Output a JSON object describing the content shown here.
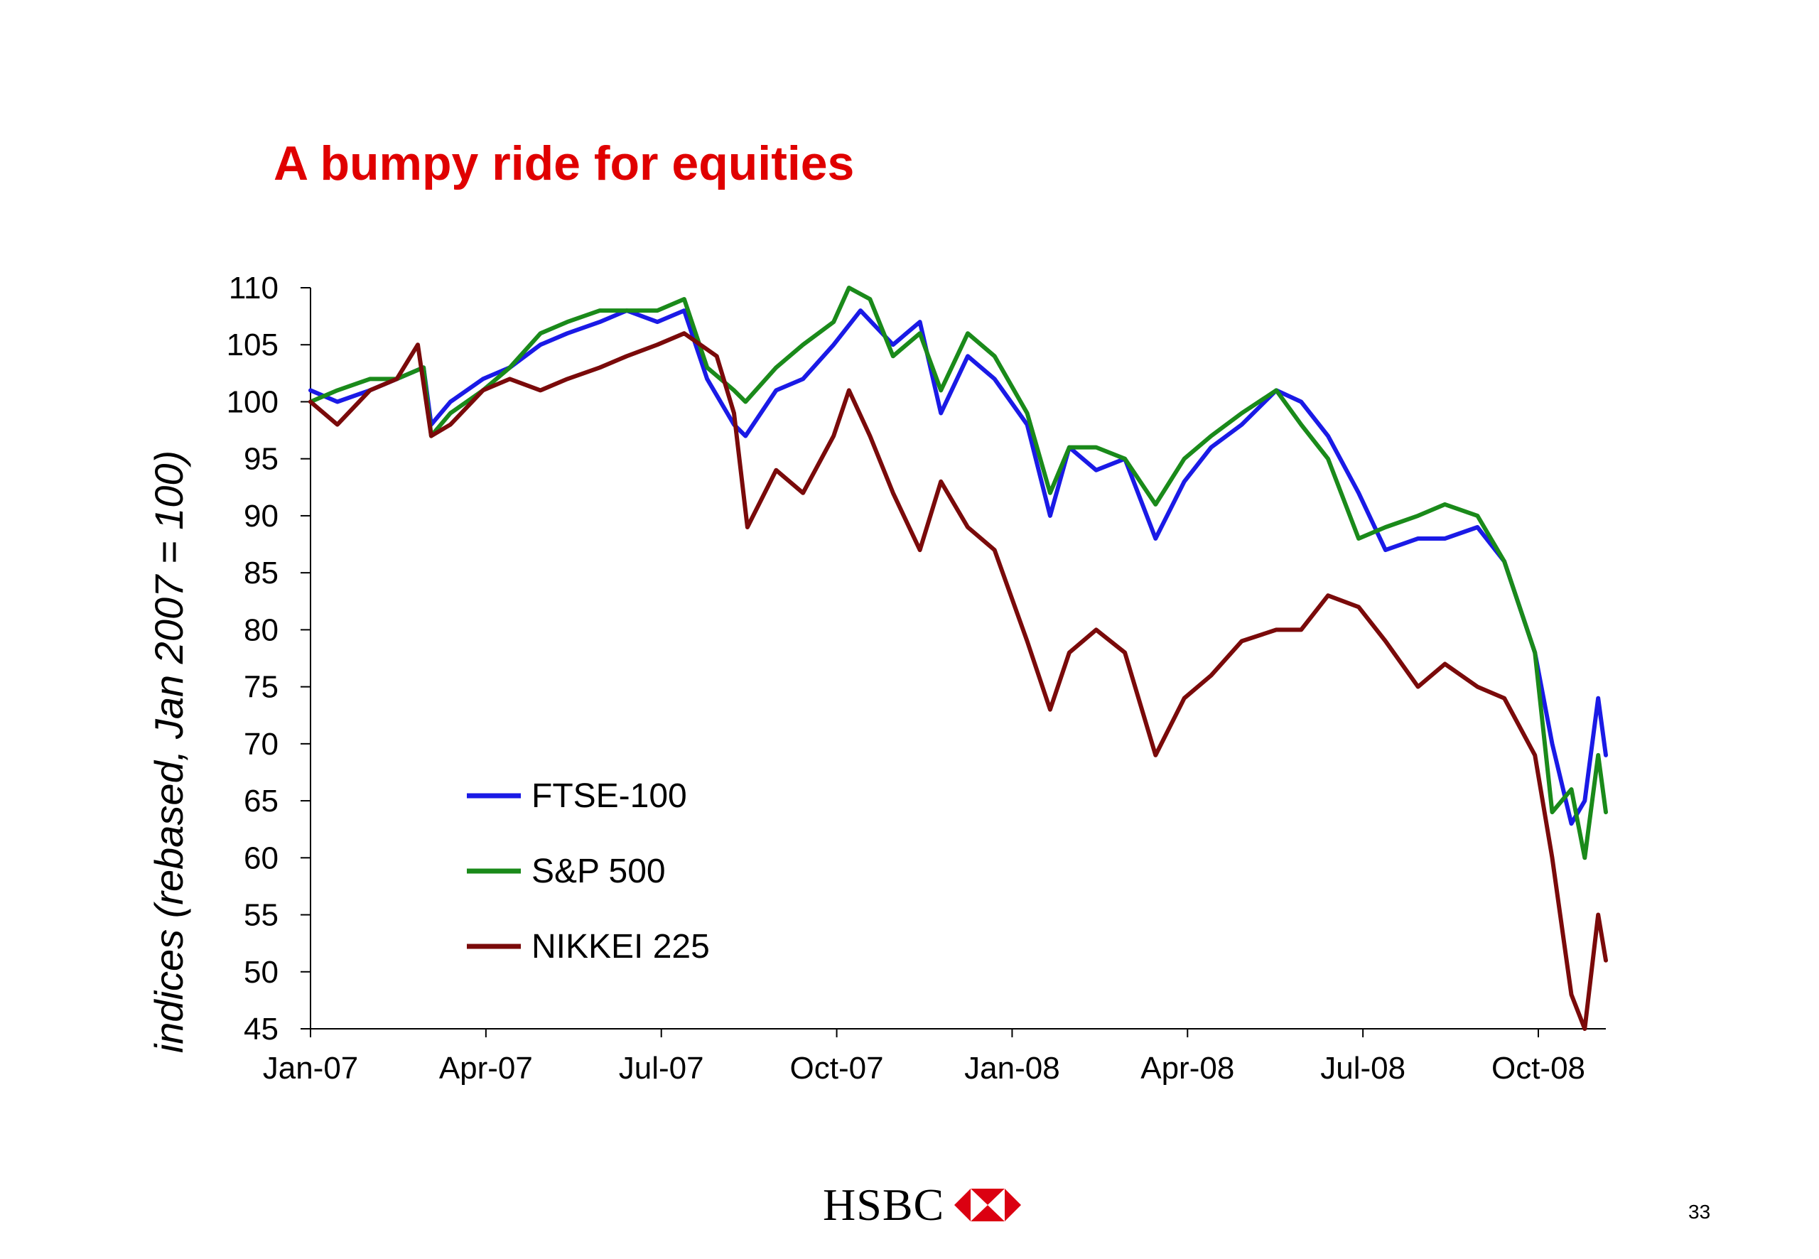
{
  "slide": {
    "title": "A bumpy ride for equities",
    "brand_name": "HSBC",
    "page_number": "33"
  },
  "colors": {
    "title": "#e00000",
    "ftse": "#1a1ae6",
    "sp500": "#1a8a1a",
    "nikkei": "#7a0a0a",
    "logo_red": "#db0011"
  },
  "chart_data": {
    "type": "line",
    "title": "A bumpy ride for equities",
    "xlabel": "",
    "ylabel": "indices (rebased, Jan 2007 = 100)",
    "ylim": [
      45,
      110
    ],
    "yticks": [
      110,
      105,
      100,
      95,
      90,
      85,
      80,
      75,
      70,
      65,
      60,
      55,
      50,
      45
    ],
    "xlim": [
      "2007-01-01",
      "2008-11-07"
    ],
    "xticks": [
      "Jan-07",
      "Apr-07",
      "Jul-07",
      "Oct-07",
      "Jan-08",
      "Apr-08",
      "Jul-08",
      "Oct-08"
    ],
    "grid": false,
    "legend": "lower-left",
    "series": [
      {
        "name": "FTSE-100",
        "color": "#1a1ae6",
        "x": [
          "2007-01-01",
          "2007-01-15",
          "2007-02-01",
          "2007-02-15",
          "2007-03-01",
          "2007-03-05",
          "2007-03-15",
          "2007-04-01",
          "2007-04-15",
          "2007-05-01",
          "2007-05-15",
          "2007-06-01",
          "2007-06-15",
          "2007-07-01",
          "2007-07-15",
          "2007-07-27",
          "2007-08-10",
          "2007-08-16",
          "2007-09-01",
          "2007-09-15",
          "2007-10-01",
          "2007-10-15",
          "2007-11-01",
          "2007-11-15",
          "2007-11-26",
          "2007-12-10",
          "2007-12-24",
          "2008-01-10",
          "2008-01-22",
          "2008-02-01",
          "2008-02-15",
          "2008-03-01",
          "2008-03-17",
          "2008-04-01",
          "2008-04-15",
          "2008-05-01",
          "2008-05-19",
          "2008-06-01",
          "2008-06-15",
          "2008-07-01",
          "2008-07-15",
          "2008-08-01",
          "2008-08-15",
          "2008-09-01",
          "2008-09-15",
          "2008-10-01",
          "2008-10-10",
          "2008-10-20",
          "2008-10-27",
          "2008-11-03",
          "2008-11-07"
        ],
        "values": [
          101,
          100,
          101,
          102,
          103,
          98,
          100,
          102,
          103,
          105,
          106,
          107,
          108,
          107,
          108,
          102,
          98,
          97,
          101,
          102,
          105,
          108,
          105,
          107,
          99,
          104,
          102,
          98,
          90,
          96,
          94,
          95,
          88,
          93,
          96,
          98,
          101,
          100,
          97,
          92,
          87,
          88,
          88,
          89,
          86,
          78,
          70,
          63,
          65,
          74,
          69
        ]
      },
      {
        "name": "S&P 500",
        "color": "#1a8a1a",
        "x": [
          "2007-01-01",
          "2007-01-15",
          "2007-02-01",
          "2007-02-15",
          "2007-03-01",
          "2007-03-05",
          "2007-03-15",
          "2007-04-01",
          "2007-04-15",
          "2007-05-01",
          "2007-05-15",
          "2007-06-01",
          "2007-06-15",
          "2007-07-01",
          "2007-07-15",
          "2007-07-27",
          "2007-08-10",
          "2007-08-16",
          "2007-09-01",
          "2007-09-15",
          "2007-10-01",
          "2007-10-09",
          "2007-10-20",
          "2007-11-01",
          "2007-11-15",
          "2007-11-26",
          "2007-12-10",
          "2007-12-24",
          "2008-01-10",
          "2008-01-22",
          "2008-02-01",
          "2008-02-15",
          "2008-03-01",
          "2008-03-17",
          "2008-04-01",
          "2008-04-15",
          "2008-05-01",
          "2008-05-19",
          "2008-06-01",
          "2008-06-15",
          "2008-07-01",
          "2008-07-15",
          "2008-08-01",
          "2008-08-15",
          "2008-09-01",
          "2008-09-15",
          "2008-10-01",
          "2008-10-10",
          "2008-10-20",
          "2008-10-27",
          "2008-11-03",
          "2008-11-07"
        ],
        "values": [
          100,
          101,
          102,
          102,
          103,
          97,
          99,
          101,
          103,
          106,
          107,
          108,
          108,
          108,
          109,
          103,
          101,
          100,
          103,
          105,
          107,
          110,
          109,
          104,
          106,
          101,
          106,
          104,
          99,
          92,
          96,
          96,
          95,
          91,
          95,
          97,
          99,
          101,
          98,
          95,
          88,
          89,
          90,
          91,
          90,
          86,
          78,
          64,
          66,
          60,
          69,
          64
        ]
      },
      {
        "name": "NIKKEI 225",
        "color": "#7a0a0a",
        "x": [
          "2007-01-01",
          "2007-01-15",
          "2007-02-01",
          "2007-02-15",
          "2007-02-26",
          "2007-03-05",
          "2007-03-15",
          "2007-04-01",
          "2007-04-15",
          "2007-05-01",
          "2007-05-15",
          "2007-06-01",
          "2007-06-15",
          "2007-07-01",
          "2007-07-15",
          "2007-08-01",
          "2007-08-10",
          "2007-08-17",
          "2007-09-01",
          "2007-09-15",
          "2007-10-01",
          "2007-10-09",
          "2007-10-20",
          "2007-11-01",
          "2007-11-15",
          "2007-11-26",
          "2007-12-10",
          "2007-12-24",
          "2008-01-10",
          "2008-01-22",
          "2008-02-01",
          "2008-02-15",
          "2008-03-01",
          "2008-03-17",
          "2008-04-01",
          "2008-04-15",
          "2008-05-01",
          "2008-05-19",
          "2008-06-01",
          "2008-06-15",
          "2008-07-01",
          "2008-07-15",
          "2008-08-01",
          "2008-08-15",
          "2008-09-01",
          "2008-09-15",
          "2008-10-01",
          "2008-10-10",
          "2008-10-20",
          "2008-10-27",
          "2008-11-03",
          "2008-11-07"
        ],
        "values": [
          100,
          98,
          101,
          102,
          105,
          97,
          98,
          101,
          102,
          101,
          102,
          103,
          104,
          105,
          106,
          104,
          99,
          89,
          94,
          92,
          97,
          101,
          97,
          92,
          87,
          93,
          89,
          87,
          79,
          73,
          78,
          80,
          78,
          69,
          74,
          76,
          79,
          80,
          80,
          83,
          82,
          79,
          75,
          77,
          75,
          74,
          69,
          60,
          48,
          45,
          55,
          51
        ]
      }
    ]
  }
}
